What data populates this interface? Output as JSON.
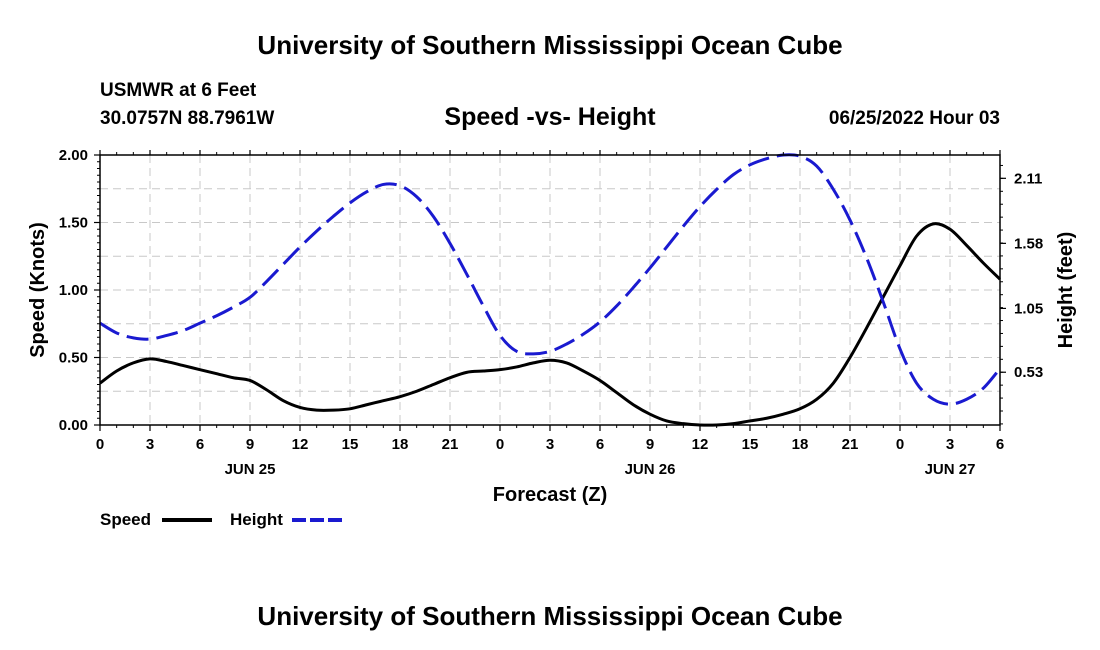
{
  "header": {
    "title": "University of Southern Mississippi Ocean Cube",
    "station": "USMWR at 6 Feet",
    "coords": "30.0757N  88.7961W",
    "datetime": "06/25/2022 Hour 03",
    "footer_title": "University of Southern Mississippi Ocean Cube"
  },
  "chart_data": {
    "type": "line",
    "title": "Speed -vs- Height",
    "xlabel": "Forecast (Z)",
    "ylabel": "Speed (Knots)",
    "y2label": "Height (feet)",
    "x_tick_labels": [
      "0",
      "3",
      "6",
      "9",
      "12",
      "15",
      "18",
      "21",
      "0",
      "3",
      "6",
      "9",
      "12",
      "15",
      "18",
      "21",
      "0",
      "3",
      "6"
    ],
    "date_labels": [
      {
        "label": "JUN 25",
        "hour": 9
      },
      {
        "label": "JUN 26",
        "hour": 33
      },
      {
        "label": "JUN 27",
        "hour": 51
      }
    ],
    "xlim": [
      0,
      54
    ],
    "ylim": [
      0,
      2.0
    ],
    "y_ticks": [
      "0.00",
      "0.50",
      "1.00",
      "1.50",
      "2.00"
    ],
    "y2lim": [
      0.1,
      2.3
    ],
    "y2_ticks": [
      "0.53",
      "1.05",
      "1.58",
      "2.11"
    ],
    "grid": true,
    "legend_position": "bottom-left",
    "series": [
      {
        "name": "Speed",
        "axis": "left",
        "color": "#000000",
        "style": "solid",
        "x": [
          0,
          1,
          2,
          3,
          4,
          5,
          6,
          7,
          8,
          9,
          10,
          11,
          12,
          13,
          14,
          15,
          16,
          17,
          18,
          19,
          20,
          21,
          22,
          23,
          24,
          25,
          26,
          27,
          28,
          29,
          30,
          31,
          32,
          33,
          34,
          35,
          36,
          37,
          38,
          39,
          40,
          41,
          42,
          43,
          44,
          45,
          46,
          47,
          48,
          49,
          50,
          51,
          52,
          53,
          54
        ],
        "values": [
          0.31,
          0.4,
          0.46,
          0.49,
          0.47,
          0.44,
          0.41,
          0.38,
          0.35,
          0.33,
          0.26,
          0.18,
          0.13,
          0.11,
          0.11,
          0.12,
          0.15,
          0.18,
          0.21,
          0.25,
          0.3,
          0.35,
          0.39,
          0.4,
          0.41,
          0.43,
          0.46,
          0.48,
          0.46,
          0.4,
          0.33,
          0.24,
          0.15,
          0.08,
          0.03,
          0.01,
          0.0,
          0.0,
          0.01,
          0.03,
          0.05,
          0.08,
          0.12,
          0.19,
          0.31,
          0.5,
          0.72,
          0.95,
          1.18,
          1.4,
          1.49,
          1.45,
          1.33,
          1.2,
          1.08
        ]
      },
      {
        "name": "Height",
        "axis": "right",
        "color": "#1a1ad0",
        "style": "dashed",
        "x": [
          0,
          1,
          2,
          3,
          4,
          5,
          6,
          7,
          8,
          9,
          10,
          11,
          12,
          13,
          14,
          15,
          16,
          17,
          18,
          19,
          20,
          21,
          22,
          23,
          24,
          25,
          26,
          27,
          28,
          29,
          30,
          31,
          32,
          33,
          34,
          35,
          36,
          37,
          38,
          39,
          40,
          41,
          42,
          43,
          44,
          45,
          46,
          47,
          48,
          49,
          50,
          51,
          52,
          53,
          54
        ],
        "values": [
          0.93,
          0.85,
          0.81,
          0.8,
          0.83,
          0.87,
          0.93,
          0.99,
          1.06,
          1.14,
          1.27,
          1.41,
          1.55,
          1.68,
          1.8,
          1.91,
          2.0,
          2.06,
          2.05,
          1.96,
          1.8,
          1.58,
          1.33,
          1.07,
          0.83,
          0.7,
          0.68,
          0.7,
          0.76,
          0.84,
          0.94,
          1.07,
          1.22,
          1.38,
          1.55,
          1.72,
          1.88,
          2.02,
          2.14,
          2.22,
          2.27,
          2.3,
          2.29,
          2.21,
          2.02,
          1.77,
          1.46,
          1.1,
          0.72,
          0.44,
          0.31,
          0.27,
          0.31,
          0.4,
          0.56
        ]
      }
    ]
  }
}
